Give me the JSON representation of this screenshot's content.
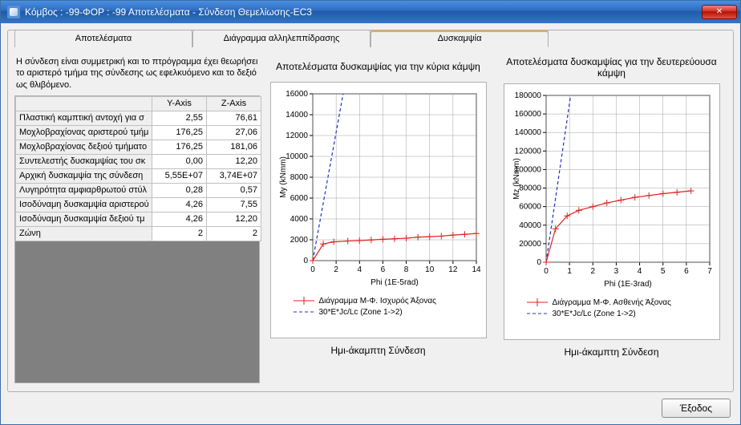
{
  "window": {
    "title": "Κόμβος : -99-ΦΟΡ : -99 Αποτελέσματα - Σύνδεση Θεμελίωσης-EC3",
    "close_label": "✕"
  },
  "tabs": {
    "results": "Αποτελέσματα",
    "interaction": "Διάγραμμα αλληλεππίδρασης",
    "stiffness": "Δυσκαμψία"
  },
  "description": "Η σύνδεση είναι συμμετρική και το πτρόγραμμα έχει θεωρήσει το αριστερό τμήμα της σύνδεσης ως εφελκυόμενο και το δεξιό ως θλιβόμενο.",
  "grid": {
    "head_y": "Y-Axis",
    "head_z": "Z-Axis",
    "rows": [
      {
        "label": "Πλαστική καμπτική αντοχή για σ",
        "y": "2,55",
        "z": "76,61"
      },
      {
        "label": "Μοχλοβραχίονας αριστερού τμήμ",
        "y": "176,25",
        "z": "27,06"
      },
      {
        "label": "Μοχλοβραχίονας δεξιού τμήματο",
        "y": "176,25",
        "z": "181,06"
      },
      {
        "label": "Συντελεστής δυσκαμψίας του σκ",
        "y": "0,00",
        "z": "12,20"
      },
      {
        "label": "Αρχική δυσκαμψία της σύνδεση",
        "y": "5,55E+07",
        "z": "3,74E+07"
      },
      {
        "label": "Λυγηρότητα αμφιαρθρωτού στύλ",
        "y": "0,28",
        "z": "0,57"
      },
      {
        "label": "Ισοδύναμη δυσκαμψία αριστερού",
        "y": "4,26",
        "z": "7,55"
      },
      {
        "label": "Ισοδύναμη δυσκαμψία δεξιού τμ",
        "y": "4,26",
        "z": "12,20"
      },
      {
        "label": "Ζώνη",
        "y": "2",
        "z": "2"
      }
    ]
  },
  "chart1": {
    "title": "Αποτελέσματα δυσκαμψίας για την κύρια κάμψη",
    "type": "line",
    "ylabel": "My (kNmm)",
    "xlabel": "Phi (1E-5rad)",
    "xlim": [
      0,
      14
    ],
    "xtick_step": 2,
    "ylim": [
      0,
      16000
    ],
    "ytick_step": 2000,
    "grid_color": "#a0a0a0",
    "background_color": "#ffffff",
    "series_red": {
      "color": "#e02020",
      "marker": "plus",
      "points": [
        [
          0,
          0
        ],
        [
          0.9,
          1600
        ],
        [
          1.8,
          1800
        ],
        [
          3,
          1880
        ],
        [
          4,
          1920
        ],
        [
          5,
          1980
        ],
        [
          6,
          2050
        ],
        [
          7,
          2100
        ],
        [
          8,
          2150
        ],
        [
          9,
          2250
        ],
        [
          10,
          2300
        ],
        [
          11,
          2350
        ],
        [
          12,
          2450
        ],
        [
          13,
          2520
        ],
        [
          14,
          2600
        ]
      ]
    },
    "series_blue": {
      "color": "#2030c0",
      "dash": "4,3",
      "points": [
        [
          0,
          0
        ],
        [
          2.6,
          16000
        ]
      ]
    },
    "legend1": "Διάγραμμα Μ-Φ. Ισχυρός Άξονας",
    "legend2": "30*E*Jc/Lc (Zone 1->2)",
    "footer": "Ημι-άκαμπτη Σύνδεση"
  },
  "chart2": {
    "title": "Αποτελέσματα δυσκαμψίας για την δευτερεύουσα κάμψη",
    "type": "line",
    "ylabel": "Mz (kNmm)",
    "xlabel": "Phi (1E-3rad)",
    "xlim": [
      0,
      7
    ],
    "xtick_step": 1,
    "ylim": [
      0,
      180000
    ],
    "ytick_step": 20000,
    "grid_color": "#a0a0a0",
    "background_color": "#ffffff",
    "series_red": {
      "color": "#e02020",
      "marker": "plus",
      "points": [
        [
          0,
          0
        ],
        [
          0.4,
          36000
        ],
        [
          0.9,
          50000
        ],
        [
          1.4,
          56000
        ],
        [
          2.0,
          60000
        ],
        [
          2.6,
          64000
        ],
        [
          3.2,
          67000
        ],
        [
          3.8,
          70000
        ],
        [
          4.4,
          72000
        ],
        [
          5.0,
          74000
        ],
        [
          5.6,
          75500
        ],
        [
          6.2,
          77000
        ]
      ]
    },
    "series_blue": {
      "color": "#2030c0",
      "dash": "4,3",
      "points": [
        [
          0,
          0
        ],
        [
          1.05,
          180000
        ]
      ]
    },
    "legend1": "Διάγραμμα Μ-Φ. Ασθενής Άξονας",
    "legend2": "30*E*Jc/Lc (Zone 1->2)",
    "footer": "Ημι-άκαμπτη Σύνδεση"
  },
  "buttons": {
    "exit": "Έξοδος"
  },
  "colors": {
    "accent_red": "#e02020",
    "accent_blue": "#2030c0"
  }
}
